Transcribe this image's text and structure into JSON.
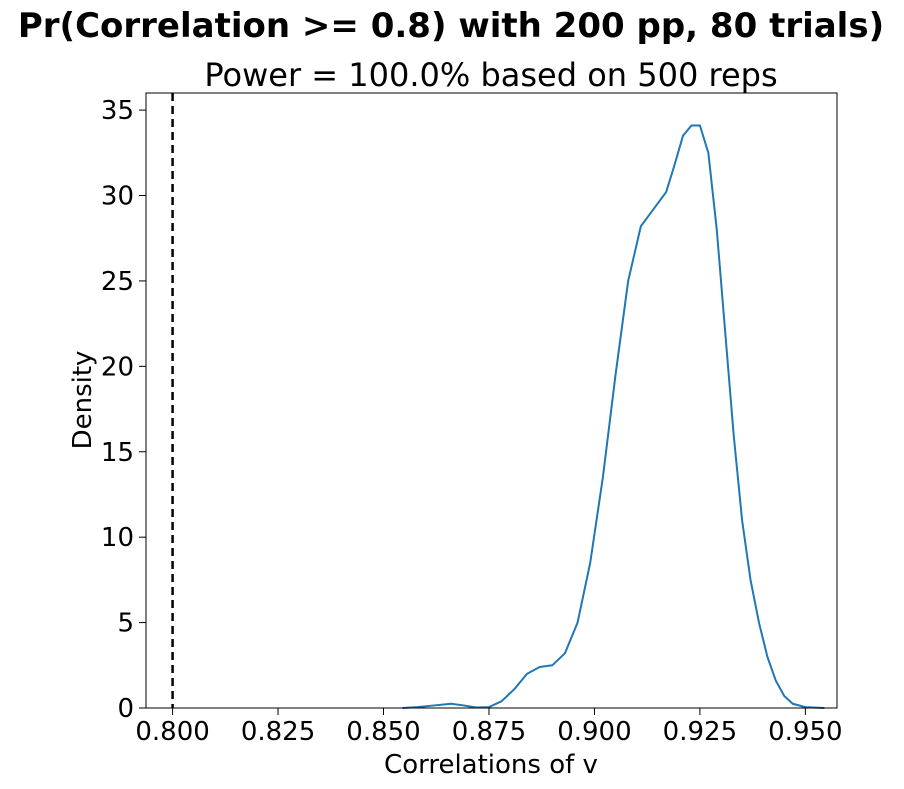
{
  "chart_data": {
    "type": "line",
    "title": "Pr(Correlation >= 0.8) with 200 pp, 80 trials)",
    "subtitle": "Power = 100.0% based on 500 reps",
    "xlabel": "Correlations of v",
    "ylabel": "Density",
    "xlim": [
      0.7937,
      0.9575
    ],
    "ylim": [
      0,
      36
    ],
    "xticks": [
      "0.800",
      "0.825",
      "0.850",
      "0.875",
      "0.900",
      "0.925",
      "0.950"
    ],
    "xtick_values": [
      0.8,
      0.825,
      0.85,
      0.875,
      0.9,
      0.925,
      0.95
    ],
    "yticks": [
      "0",
      "5",
      "10",
      "15",
      "20",
      "25",
      "30",
      "35"
    ],
    "ytick_values": [
      0,
      5,
      10,
      15,
      20,
      25,
      30,
      35
    ],
    "grid": false,
    "series": [
      {
        "color": "#1f77b4",
        "x": [
          0.8545,
          0.858,
          0.862,
          0.866,
          0.869,
          0.872,
          0.875,
          0.878,
          0.881,
          0.884,
          0.887,
          0.89,
          0.893,
          0.896,
          0.899,
          0.902,
          0.905,
          0.908,
          0.911,
          0.914,
          0.917,
          0.919,
          0.921,
          0.923,
          0.925,
          0.927,
          0.929,
          0.931,
          0.933,
          0.935,
          0.937,
          0.939,
          0.941,
          0.943,
          0.945,
          0.947,
          0.95,
          0.9545
        ],
        "y": [
          0.0,
          0.05,
          0.15,
          0.25,
          0.15,
          0.03,
          0.05,
          0.4,
          1.1,
          2.0,
          2.4,
          2.5,
          3.2,
          5.0,
          8.5,
          13.5,
          19.5,
          25.0,
          28.2,
          29.2,
          30.2,
          31.8,
          33.5,
          34.1,
          34.1,
          32.5,
          28.0,
          22.0,
          16.0,
          11.0,
          7.5,
          5.0,
          3.0,
          1.6,
          0.7,
          0.25,
          0.05,
          0.0
        ]
      }
    ],
    "reference_line": {
      "x": 0.8,
      "style": "dashed",
      "color": "#000000"
    }
  }
}
